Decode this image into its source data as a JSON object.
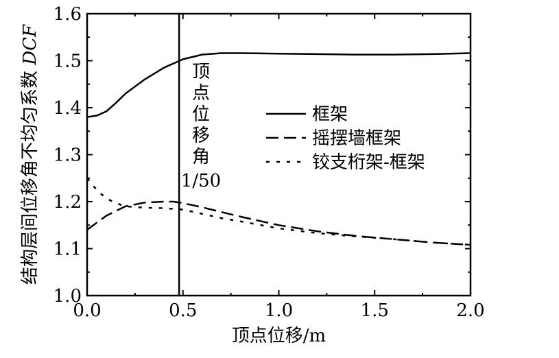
{
  "chart_data": {
    "type": "line",
    "xlabel": "顶点位移/m",
    "ylabel_prefix": "结构层间位移角不均匀系数 ",
    "ylabel_italic": "DCF",
    "xlim": [
      0.0,
      2.0
    ],
    "ylim": [
      1.0,
      1.6
    ],
    "x_ticks": [
      "0.0",
      "0.5",
      "1.0",
      "1.5",
      "2.0"
    ],
    "y_ticks": [
      "1.0",
      "1.1",
      "1.2",
      "1.3",
      "1.4",
      "1.5",
      "1.6"
    ],
    "grid": false,
    "legend_position": "center-right",
    "series": [
      {
        "name": "框架",
        "style": "solid",
        "x": [
          0.0,
          0.05,
          0.1,
          0.15,
          0.2,
          0.3,
          0.4,
          0.5,
          0.6,
          0.7,
          0.8,
          1.0,
          1.2,
          1.4,
          1.6,
          1.8,
          2.0
        ],
        "y": [
          1.38,
          1.383,
          1.392,
          1.41,
          1.43,
          1.46,
          1.485,
          1.503,
          1.513,
          1.516,
          1.516,
          1.515,
          1.514,
          1.513,
          1.513,
          1.514,
          1.516
        ]
      },
      {
        "name": "摇摆墙框架",
        "style": "dashed",
        "x": [
          0.0,
          0.05,
          0.1,
          0.15,
          0.2,
          0.3,
          0.4,
          0.45,
          0.5,
          0.6,
          0.7,
          0.8,
          1.0,
          1.2,
          1.4,
          1.6,
          1.8,
          2.0
        ],
        "y": [
          1.14,
          1.155,
          1.17,
          1.18,
          1.19,
          1.198,
          1.2,
          1.2,
          1.197,
          1.188,
          1.178,
          1.168,
          1.15,
          1.137,
          1.127,
          1.12,
          1.113,
          1.108
        ]
      },
      {
        "name": "铰支桁架-框架",
        "style": "dotted",
        "x": [
          0.0,
          0.05,
          0.1,
          0.15,
          0.2,
          0.3,
          0.4,
          0.5,
          0.6,
          0.7,
          0.8,
          1.0,
          1.2,
          1.4,
          1.6,
          1.8,
          2.0
        ],
        "y": [
          1.25,
          1.225,
          1.207,
          1.197,
          1.19,
          1.187,
          1.186,
          1.183,
          1.174,
          1.165,
          1.158,
          1.143,
          1.133,
          1.126,
          1.12,
          1.113,
          1.108
        ]
      }
    ],
    "annotation": {
      "x": 0.48,
      "label_chars": [
        "顶",
        "点",
        "位",
        "移",
        "角"
      ],
      "label_value": "1/50"
    }
  }
}
